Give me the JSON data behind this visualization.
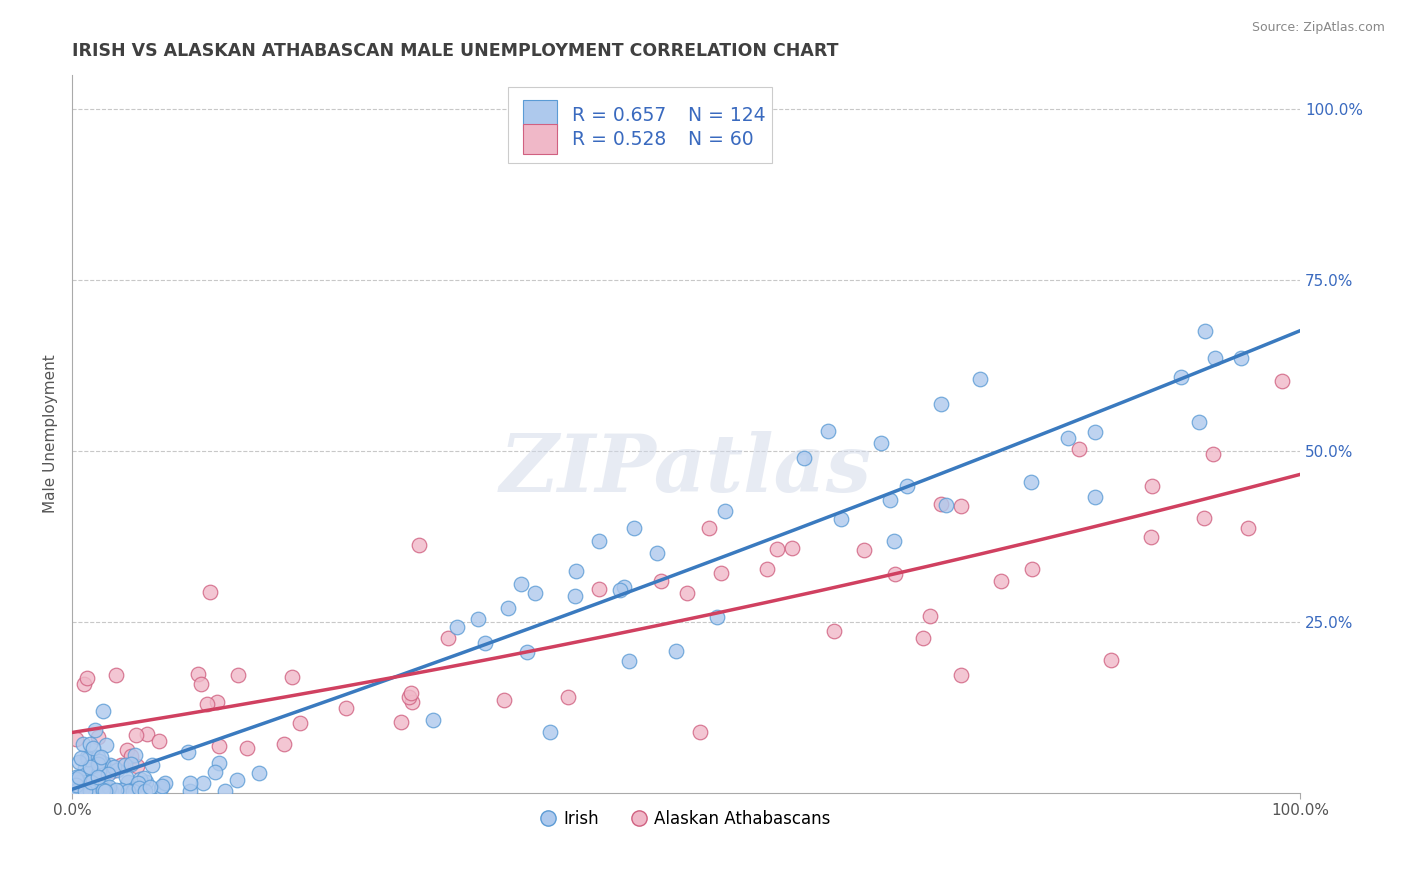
{
  "title": "IRISH VS ALASKAN ATHABASCAN MALE UNEMPLOYMENT CORRELATION CHART",
  "source": "Source: ZipAtlas.com",
  "ylabel": "Male Unemployment",
  "ytick_labels_right": [
    "25.0%",
    "50.0%",
    "75.0%",
    "100.0%"
  ],
  "ytick_vals_right": [
    0.25,
    0.5,
    0.75,
    1.0
  ],
  "watermark": "ZIPatlas",
  "legend_irish_R": "0.657",
  "legend_irish_N": "124",
  "legend_athabascan_R": "0.528",
  "legend_athabascan_N": "60",
  "irish_fill_color": "#aec9ed",
  "irish_edge_color": "#5b9bd5",
  "athabascan_fill_color": "#f0b8c8",
  "athabascan_edge_color": "#d06080",
  "irish_line_color": "#3a7abf",
  "athabascan_line_color": "#d04060",
  "blue_text_color": "#3a6abf",
  "title_color": "#404040",
  "background_color": "#ffffff",
  "grid_color": "#c8c8c8",
  "xlim": [
    0.0,
    1.0
  ],
  "ylim": [
    0.0,
    1.05
  ],
  "xtick_labels": [
    "0.0%",
    "100.0%"
  ],
  "xtick_pos": [
    0.0,
    1.0
  ],
  "legend_bottom_items": [
    "Irish",
    "Alaskan Athabascans"
  ]
}
